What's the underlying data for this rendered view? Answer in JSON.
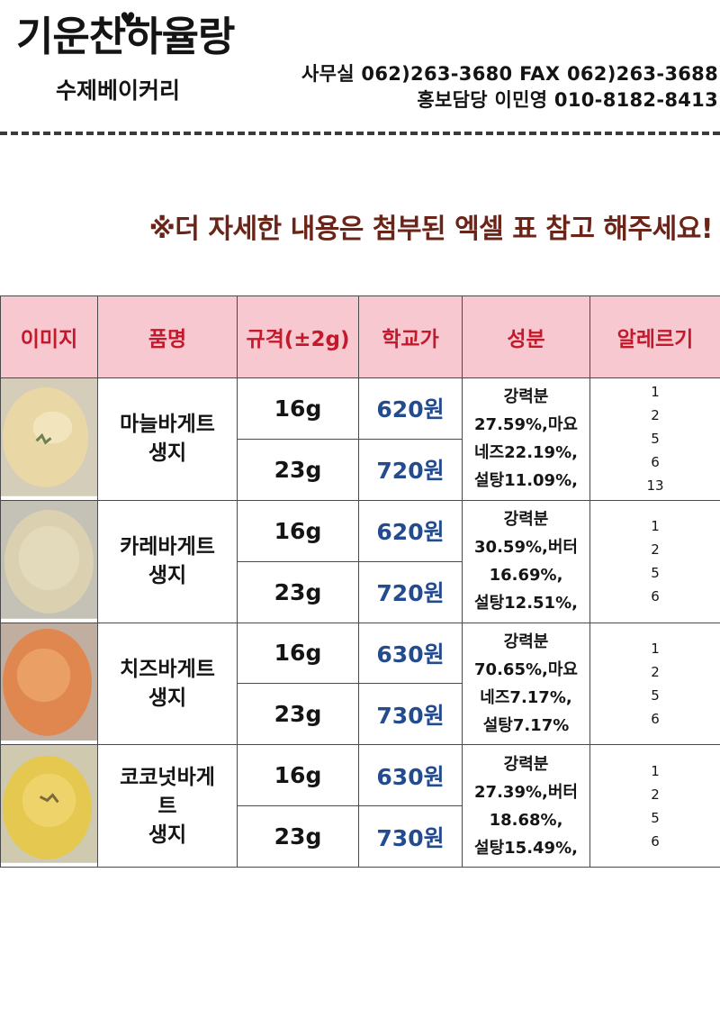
{
  "header": {
    "logo_title": "기운찬하율랑",
    "logo_subtitle": "수제베이커리",
    "office_line": "사무실 062)263-3680 FAX 062)263-3688",
    "pr_line": "홍보담당 이민영 010-8182-8413"
  },
  "notice": "※더 자세한 내용은 첨부된 엑셀 표 참고 해주세요!",
  "table": {
    "headers": [
      "이미지",
      "품명",
      "규격(±2g)",
      "학교가",
      "성분",
      "알레르기"
    ],
    "rows": [
      {
        "name_lines": [
          "마늘바게트",
          "생지"
        ],
        "specs": [
          {
            "weight": "16g",
            "price": "620원"
          },
          {
            "weight": "23g",
            "price": "720원"
          }
        ],
        "ingredient_lines": [
          "강력분",
          "27.59%,마요",
          "네즈22.19%,",
          "설탕11.09%,"
        ],
        "allergens": [
          "1",
          "2",
          "5",
          "6",
          "13"
        ]
      },
      {
        "name_lines": [
          "카레바게트",
          "생지"
        ],
        "specs": [
          {
            "weight": "16g",
            "price": "620원"
          },
          {
            "weight": "23g",
            "price": "720원"
          }
        ],
        "ingredient_lines": [
          "강력분",
          "30.59%,버터",
          "16.69%,",
          "설탕12.51%,"
        ],
        "allergens": [
          "1",
          "2",
          "5",
          "6"
        ]
      },
      {
        "name_lines": [
          "치즈바게트",
          "생지"
        ],
        "specs": [
          {
            "weight": "16g",
            "price": "630원"
          },
          {
            "weight": "23g",
            "price": "730원"
          }
        ],
        "ingredient_lines": [
          "강력분",
          "70.65%,마요",
          "네즈7.17%,",
          "설탕7.17%"
        ],
        "allergens": [
          "1",
          "2",
          "5",
          "6"
        ]
      },
      {
        "name_lines": [
          "코코넛바게",
          "트",
          "생지"
        ],
        "specs": [
          {
            "weight": "16g",
            "price": "630원"
          },
          {
            "weight": "23g",
            "price": "730원"
          }
        ],
        "ingredient_lines": [
          "강력분",
          "27.39%,버터",
          "18.68%,",
          "설탕15.49%,"
        ],
        "allergens": [
          "1",
          "2",
          "5",
          "6"
        ]
      }
    ]
  },
  "icons": {
    "heart": "heart-icon"
  },
  "colors": {
    "header_bg": "#f8c8d0",
    "header_text": "#c21a2c",
    "price_text": "#244b8e",
    "notice_text": "#6b2418"
  }
}
